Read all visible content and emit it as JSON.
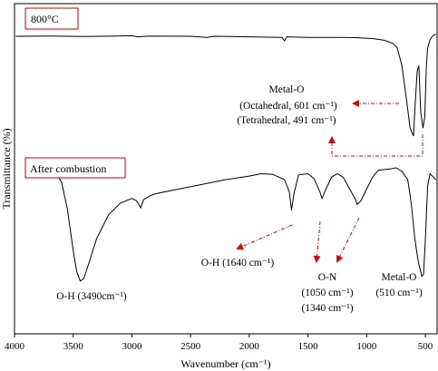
{
  "chart_data": {
    "type": "line",
    "xlabel": "Wavenumber (cm⁻¹)",
    "ylabel": "Transmittance (%)",
    "xlim": [
      4000,
      400
    ],
    "x_reversed": true,
    "xticks": [
      "4000",
      "3500",
      "3000",
      "2500",
      "2000",
      "1500",
      "1000",
      "500"
    ],
    "xtick_values": [
      4000,
      3500,
      3000,
      2500,
      2000,
      1500,
      1000,
      500
    ],
    "y_units": "arbitrary",
    "grid": false,
    "series": [
      {
        "name": "800°C",
        "color": "#000000",
        "points": [
          [
            3990,
            0.96
          ],
          [
            3700,
            0.962
          ],
          [
            3400,
            0.958
          ],
          [
            3000,
            0.965
          ],
          [
            2950,
            0.955
          ],
          [
            2850,
            0.962
          ],
          [
            2500,
            0.96
          ],
          [
            2360,
            0.95
          ],
          [
            2300,
            0.96
          ],
          [
            2000,
            0.955
          ],
          [
            1720,
            0.95
          ],
          [
            1700,
            0.92
          ],
          [
            1680,
            0.955
          ],
          [
            1500,
            0.95
          ],
          [
            1300,
            0.95
          ],
          [
            1100,
            0.948
          ],
          [
            950,
            0.94
          ],
          [
            850,
            0.925
          ],
          [
            780,
            0.9
          ],
          [
            740,
            0.86
          ],
          [
            700,
            0.7
          ],
          [
            660,
            0.4
          ],
          [
            630,
            0.15
          ],
          [
            601,
            0.08
          ],
          [
            590,
            0.3
          ],
          [
            570,
            0.65
          ],
          [
            555,
            0.7
          ],
          [
            540,
            0.3
          ],
          [
            520,
            0.15
          ],
          [
            505,
            0.25
          ],
          [
            491,
            0.7
          ],
          [
            480,
            0.86
          ],
          [
            460,
            0.93
          ],
          [
            440,
            0.96
          ],
          [
            410,
            0.98
          ]
        ]
      },
      {
        "name": "After combustion",
        "color": "#000000",
        "points": [
          [
            3690,
            0.98
          ],
          [
            3650,
            0.96
          ],
          [
            3600,
            0.88
          ],
          [
            3550,
            0.65
          ],
          [
            3500,
            0.3
          ],
          [
            3470,
            0.12
          ],
          [
            3440,
            0.04
          ],
          [
            3410,
            0.06
          ],
          [
            3370,
            0.18
          ],
          [
            3300,
            0.4
          ],
          [
            3200,
            0.6
          ],
          [
            3100,
            0.7
          ],
          [
            3000,
            0.74
          ],
          [
            2960,
            0.72
          ],
          [
            2925,
            0.66
          ],
          [
            2900,
            0.73
          ],
          [
            2850,
            0.76
          ],
          [
            2800,
            0.78
          ],
          [
            2600,
            0.82
          ],
          [
            2400,
            0.86
          ],
          [
            2200,
            0.9
          ],
          [
            2000,
            0.93
          ],
          [
            1900,
            0.95
          ],
          [
            1800,
            0.945
          ],
          [
            1700,
            0.9
          ],
          [
            1660,
            0.8
          ],
          [
            1640,
            0.64
          ],
          [
            1620,
            0.78
          ],
          [
            1580,
            0.94
          ],
          [
            1500,
            0.95
          ],
          [
            1450,
            0.91
          ],
          [
            1400,
            0.8
          ],
          [
            1380,
            0.74
          ],
          [
            1360,
            0.79
          ],
          [
            1300,
            0.92
          ],
          [
            1250,
            0.95
          ],
          [
            1200,
            0.92
          ],
          [
            1100,
            0.74
          ],
          [
            1080,
            0.69
          ],
          [
            1050,
            0.72
          ],
          [
            1000,
            0.82
          ],
          [
            950,
            0.92
          ],
          [
            900,
            0.98
          ],
          [
            800,
            0.99
          ],
          [
            750,
            1.0
          ],
          [
            700,
            0.97
          ],
          [
            650,
            0.9
          ],
          [
            620,
            0.7
          ],
          [
            590,
            0.4
          ],
          [
            560,
            0.2
          ],
          [
            530,
            0.08
          ],
          [
            515,
            0.1
          ],
          [
            500,
            0.4
          ],
          [
            480,
            0.85
          ],
          [
            460,
            0.95
          ],
          [
            440,
            0.93
          ],
          [
            410,
            0.9
          ]
        ]
      }
    ]
  },
  "labels": {
    "series1_box": "800°C",
    "series2_box": "After combustion",
    "metal_o_top": "Metal-O",
    "octahedral": "(Octahedral, 601 cm⁻¹)",
    "tetrahedral": "(Tetrahedral, 491 cm⁻¹)",
    "oh_3490": "O-H (3490cm⁻¹)",
    "oh_1640": "O-H (1640 cm⁻¹)",
    "on": "O-N",
    "on_1050": "(1050 cm⁻¹)",
    "on_1340": "(1340 cm⁻¹)",
    "metal_o_bottom": "Metal-O",
    "mo_510": "(510 cm⁻¹)"
  },
  "colors": {
    "annotation": "#dd0000",
    "box_border": "#cc0000",
    "line": "#000000"
  }
}
